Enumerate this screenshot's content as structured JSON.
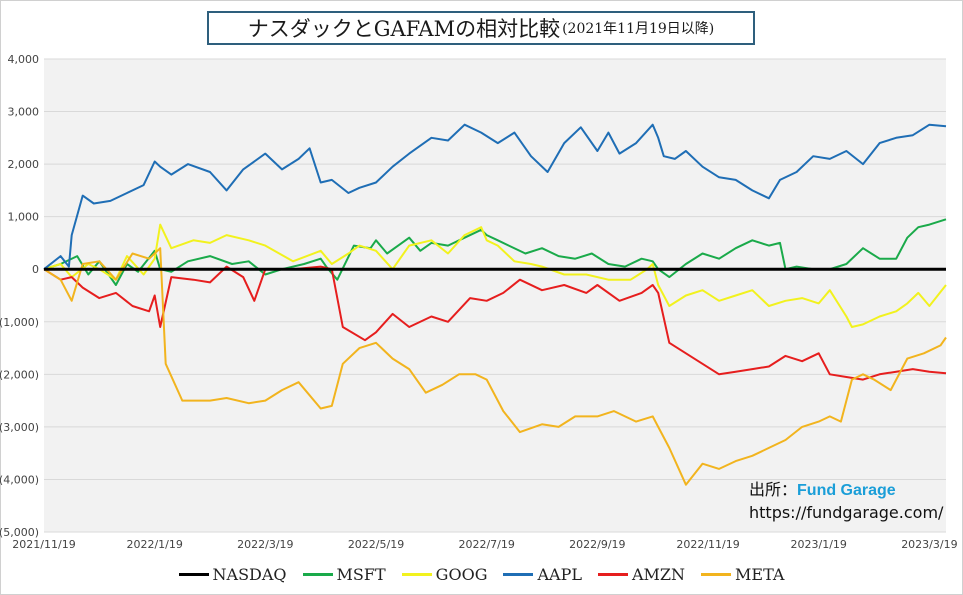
{
  "title": {
    "main": "ナスダックとGAFAMの相対比較",
    "sub": "(2021年11月19日以降)"
  },
  "source": {
    "label": "出所：",
    "brand": "Fund Garage",
    "url": "https://fundgarage.com/"
  },
  "chart_data": {
    "type": "line",
    "title": "ナスダックとGAFAMの相対比較(2021年11月19日以降)",
    "xlabel": "",
    "ylabel": "",
    "ylim": [
      -5000,
      4000
    ],
    "xlim": [
      0,
      16.3
    ],
    "grid": true,
    "legend_position": "bottom",
    "y_ticks": [
      {
        "value": 4000,
        "label": "4,000"
      },
      {
        "value": 3000,
        "label": "3,000"
      },
      {
        "value": 2000,
        "label": "2,000"
      },
      {
        "value": 1000,
        "label": "1,000"
      },
      {
        "value": 0,
        "label": "0"
      },
      {
        "value": -1000,
        "label": "(1,000)"
      },
      {
        "value": -2000,
        "label": "(2,000)"
      },
      {
        "value": -3000,
        "label": "(3,000)"
      },
      {
        "value": -4000,
        "label": "(4,000)"
      },
      {
        "value": -5000,
        "label": "(5,000)"
      }
    ],
    "x_ticks": [
      {
        "value": 0,
        "label": "2021/11/19"
      },
      {
        "value": 2,
        "label": "2022/1/19"
      },
      {
        "value": 4,
        "label": "2022/3/19"
      },
      {
        "value": 6,
        "label": "2022/5/19"
      },
      {
        "value": 8,
        "label": "2022/7/19"
      },
      {
        "value": 10,
        "label": "2022/9/19"
      },
      {
        "value": 12,
        "label": "2022/11/19"
      },
      {
        "value": 14,
        "label": "2023/1/19"
      },
      {
        "value": 16,
        "label": "2023/3/19"
      }
    ],
    "series": [
      {
        "name": "NASDAQ",
        "color": "#000000",
        "width": 3,
        "x": [
          0,
          16.3
        ],
        "y": [
          0,
          0
        ]
      },
      {
        "name": "MSFT",
        "color": "#1aaa4a",
        "width": 2,
        "x": [
          0,
          0.3,
          0.6,
          0.8,
          1.0,
          1.3,
          1.5,
          1.7,
          2.0,
          2.1,
          2.3,
          2.6,
          3.0,
          3.4,
          3.7,
          4.0,
          4.3,
          4.7,
          5.0,
          5.1,
          5.3,
          5.6,
          5.9,
          6.0,
          6.2,
          6.4,
          6.6,
          6.8,
          7.0,
          7.3,
          7.6,
          7.9,
          8.0,
          8.2,
          8.4,
          8.7,
          9.0,
          9.3,
          9.6,
          9.9,
          10.2,
          10.5,
          10.8,
          11.0,
          11.1,
          11.3,
          11.6,
          11.9,
          12.2,
          12.5,
          12.8,
          13.1,
          13.3,
          13.4,
          13.6,
          13.9,
          14.2,
          14.5,
          14.8,
          15.1,
          15.4,
          15.6,
          15.8,
          16.0,
          16.3
        ],
        "y": [
          0,
          100,
          250,
          -100,
          150,
          -300,
          100,
          -50,
          350,
          0,
          -50,
          150,
          250,
          100,
          150,
          -100,
          0,
          100,
          200,
          50,
          -200,
          450,
          400,
          550,
          300,
          450,
          600,
          350,
          500,
          450,
          600,
          750,
          650,
          550,
          450,
          300,
          400,
          250,
          200,
          300,
          100,
          50,
          200,
          150,
          0,
          -150,
          100,
          300,
          200,
          400,
          550,
          450,
          500,
          0,
          50,
          0,
          0,
          100,
          400,
          200,
          200,
          600,
          800,
          850,
          950
        ]
      },
      {
        "name": "GOOG",
        "color": "#f2f21e",
        "width": 2,
        "x": [
          0,
          0.3,
          0.5,
          0.8,
          1.0,
          1.3,
          1.5,
          1.8,
          2.0,
          2.1,
          2.3,
          2.7,
          3.0,
          3.3,
          3.7,
          4.0,
          4.5,
          5.0,
          5.2,
          5.5,
          5.7,
          6.0,
          6.3,
          6.6,
          7.0,
          7.3,
          7.6,
          7.9,
          8.0,
          8.2,
          8.5,
          8.8,
          9.0,
          9.4,
          9.8,
          10.2,
          10.6,
          10.9,
          11.0,
          11.1,
          11.3,
          11.6,
          11.9,
          12.2,
          12.5,
          12.8,
          13.1,
          13.4,
          13.7,
          14.0,
          14.2,
          14.5,
          14.6,
          14.8,
          15.1,
          15.4,
          15.6,
          15.8,
          16.0,
          16.3
        ],
        "y": [
          0,
          100,
          -150,
          100,
          0,
          -200,
          250,
          -100,
          200,
          850,
          400,
          550,
          500,
          650,
          550,
          450,
          150,
          350,
          100,
          300,
          450,
          350,
          0,
          450,
          550,
          300,
          650,
          800,
          550,
          450,
          150,
          100,
          50,
          -100,
          -100,
          -200,
          -200,
          0,
          100,
          -300,
          -700,
          -500,
          -400,
          -600,
          -500,
          -400,
          -700,
          -600,
          -550,
          -650,
          -400,
          -900,
          -1100,
          -1050,
          -900,
          -800,
          -650,
          -450,
          -700,
          -300
        ]
      },
      {
        "name": "AAPL",
        "color": "#1f6eb5",
        "width": 2,
        "x": [
          0,
          0.3,
          0.45,
          0.5,
          0.7,
          0.9,
          1.2,
          1.5,
          1.8,
          2.0,
          2.1,
          2.3,
          2.6,
          3.0,
          3.3,
          3.6,
          4.0,
          4.3,
          4.6,
          4.8,
          5.0,
          5.2,
          5.5,
          5.7,
          6.0,
          6.3,
          6.6,
          7.0,
          7.3,
          7.6,
          7.9,
          8.2,
          8.5,
          8.8,
          9.1,
          9.4,
          9.7,
          10.0,
          10.2,
          10.4,
          10.7,
          11.0,
          11.1,
          11.2,
          11.4,
          11.6,
          11.9,
          12.2,
          12.5,
          12.8,
          13.1,
          13.3,
          13.6,
          13.9,
          14.2,
          14.5,
          14.8,
          15.1,
          15.4,
          15.7,
          16.0,
          16.3
        ],
        "y": [
          0,
          250,
          50,
          650,
          1400,
          1250,
          1300,
          1450,
          1600,
          2050,
          1950,
          1800,
          2000,
          1850,
          1500,
          1900,
          2200,
          1900,
          2100,
          2300,
          1650,
          1700,
          1450,
          1550,
          1650,
          1950,
          2200,
          2500,
          2450,
          2750,
          2600,
          2400,
          2600,
          2150,
          1850,
          2400,
          2700,
          2250,
          2600,
          2200,
          2400,
          2750,
          2500,
          2150,
          2100,
          2250,
          1950,
          1750,
          1700,
          1500,
          1350,
          1700,
          1850,
          2150,
          2100,
          2250,
          2000,
          2400,
          2500,
          2550,
          2750,
          2720
        ]
      },
      {
        "name": "AMZN",
        "color": "#e61e1e",
        "width": 2,
        "x": [
          0,
          0.3,
          0.5,
          0.7,
          1.0,
          1.3,
          1.6,
          1.9,
          2.0,
          2.1,
          2.3,
          2.7,
          3.0,
          3.3,
          3.6,
          3.8,
          4.0,
          4.5,
          5.0,
          5.2,
          5.4,
          5.8,
          6.0,
          6.3,
          6.6,
          7.0,
          7.3,
          7.7,
          8.0,
          8.3,
          8.6,
          9.0,
          9.4,
          9.8,
          10.0,
          10.4,
          10.8,
          11.0,
          11.1,
          11.3,
          11.6,
          11.9,
          12.2,
          12.5,
          12.8,
          13.1,
          13.4,
          13.7,
          14.0,
          14.2,
          14.5,
          14.8,
          15.1,
          15.4,
          15.7,
          16.0,
          16.3
        ],
        "y": [
          0,
          -200,
          -150,
          -350,
          -550,
          -450,
          -700,
          -800,
          -500,
          -1100,
          -150,
          -200,
          -250,
          50,
          -150,
          -600,
          0,
          0,
          50,
          0,
          -1100,
          -1350,
          -1200,
          -850,
          -1100,
          -900,
          -1000,
          -550,
          -600,
          -450,
          -200,
          -400,
          -300,
          -450,
          -300,
          -600,
          -450,
          -300,
          -450,
          -1400,
          -1600,
          -1800,
          -2000,
          -1950,
          -1900,
          -1850,
          -1650,
          -1750,
          -1600,
          -2000,
          -2050,
          -2100,
          -2000,
          -1950,
          -1900,
          -1950,
          -1980
        ]
      },
      {
        "name": "META",
        "color": "#f2b41e",
        "width": 2,
        "x": [
          0,
          0.3,
          0.5,
          0.7,
          1.0,
          1.3,
          1.6,
          1.9,
          2.0,
          2.1,
          2.2,
          2.5,
          3.0,
          3.3,
          3.7,
          4.0,
          4.3,
          4.6,
          5.0,
          5.2,
          5.4,
          5.7,
          6.0,
          6.3,
          6.6,
          6.9,
          7.2,
          7.5,
          7.8,
          8.0,
          8.3,
          8.6,
          9.0,
          9.3,
          9.6,
          10.0,
          10.3,
          10.7,
          11.0,
          11.1,
          11.3,
          11.6,
          11.9,
          12.2,
          12.5,
          12.8,
          13.1,
          13.4,
          13.7,
          14.0,
          14.2,
          14.4,
          14.6,
          14.8,
          15.0,
          15.3,
          15.6,
          15.9,
          16.2,
          16.3
        ],
        "y": [
          0,
          -200,
          -600,
          100,
          150,
          -200,
          300,
          200,
          300,
          400,
          -1800,
          -2500,
          -2500,
          -2450,
          -2550,
          -2500,
          -2300,
          -2150,
          -2650,
          -2600,
          -1800,
          -1500,
          -1400,
          -1700,
          -1900,
          -2350,
          -2200,
          -2000,
          -2000,
          -2100,
          -2700,
          -3100,
          -2950,
          -3000,
          -2800,
          -2800,
          -2700,
          -2900,
          -2800,
          -3000,
          -3400,
          -4100,
          -3700,
          -3800,
          -3650,
          -3550,
          -3400,
          -3250,
          -3000,
          -2900,
          -2800,
          -2900,
          -2100,
          -2000,
          -2100,
          -2300,
          -1700,
          -1600,
          -1450,
          -1300
        ]
      }
    ]
  }
}
